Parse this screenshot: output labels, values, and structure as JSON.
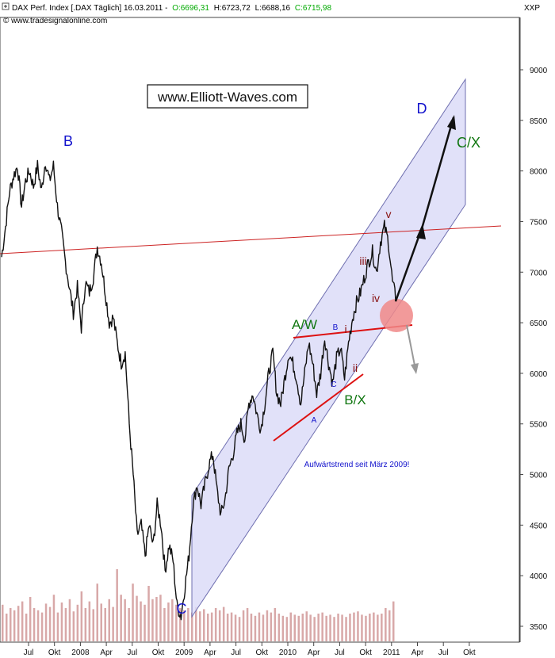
{
  "header": {
    "symbol_text": "DAX Perf. Index [.DAX  Täglich] 16.03.2011 -",
    "open_text": "O:6696,31",
    "high_text": "H:6723,72",
    "low_text": "L:6688,16",
    "close_text": "C:6715,98",
    "source_text": "© www.tradesignalonline.com",
    "ticker": "XXP",
    "colors": {
      "open": "#00aa00",
      "close": "#00aa00",
      "text": "#000000"
    }
  },
  "website_box": {
    "label": "www.Elliott-Waves.com"
  },
  "trend_note": "Aufwärtstrend seit März 2009!",
  "chart_data": {
    "type": "line",
    "title": "",
    "xlabel": "",
    "ylabel": "",
    "x_ticks": [
      "Jul",
      "Okt",
      "2008",
      "Apr",
      "Jul",
      "Okt",
      "2009",
      "Apr",
      "Jul",
      "Okt",
      "2010",
      "Apr",
      "Jul",
      "Okt",
      "2011",
      "Apr",
      "Jul",
      "Okt"
    ],
    "y_ticks": [
      3500,
      4000,
      4500,
      5000,
      5500,
      6000,
      6500,
      7000,
      7500,
      8000,
      8500,
      9000
    ],
    "ylim": [
      3400,
      9400
    ],
    "axis_side": "right",
    "grid": false,
    "series": [
      {
        "values": [
          7150,
          7450,
          7800,
          7950,
          8050,
          7650,
          7900,
          8000,
          7850,
          8050,
          7800,
          8100,
          7900,
          8050,
          7650,
          7400,
          7100,
          6850,
          6600,
          6850,
          6450,
          6900,
          6800,
          6950,
          7250,
          7100,
          6800,
          6500,
          6550,
          6300,
          6100,
          6200,
          5500,
          5000,
          4400,
          4500,
          4200,
          4500,
          4300,
          4700,
          4500,
          4050,
          4300,
          4150,
          3700,
          3600,
          3900,
          4200,
          4700,
          4900,
          4700,
          4900,
          5100,
          5200,
          4850,
          4600,
          4750,
          5050,
          5200,
          5400,
          5500,
          5350,
          5700,
          5800,
          5600,
          5450,
          5700,
          6000,
          6200,
          5800,
          5700,
          5950,
          6200,
          6100,
          5950,
          5700,
          6000,
          6300,
          6100,
          5800,
          6000,
          6350,
          6100,
          5900,
          6150,
          6250,
          5950,
          6300,
          6550,
          6700,
          6800,
          6950,
          7100,
          7200,
          7000,
          7300,
          7450,
          7300,
          6900,
          6716
        ]
      }
    ],
    "volume": [
      330,
      250,
      300,
      280,
      320,
      360,
      250,
      400,
      300,
      280,
      260,
      340,
      310,
      420,
      260,
      350,
      300,
      380,
      270,
      330,
      450,
      300,
      360,
      290,
      520,
      340,
      300,
      380,
      310,
      650,
      420,
      380,
      300,
      520,
      410,
      360,
      330,
      500,
      380,
      400,
      420,
      300,
      350,
      380,
      330,
      300,
      280,
      300,
      260,
      310,
      270,
      290,
      250,
      260,
      300,
      280,
      310,
      250,
      260,
      240,
      220,
      280,
      300,
      250,
      230,
      260,
      240,
      280,
      260,
      300,
      250,
      230,
      220,
      260,
      240,
      230,
      250,
      270,
      240,
      220,
      250,
      260,
      230,
      240,
      220,
      250,
      240,
      220,
      250,
      260,
      270,
      240,
      230,
      250,
      260,
      240,
      250,
      300,
      280,
      360
    ],
    "annotations": {
      "B_top": "B",
      "C_low": "C",
      "D": "D",
      "CX": "C/X",
      "AW": "A/W",
      "BX": "B/X",
      "small_A": "A",
      "small_B": "B",
      "small_C": "C",
      "sub_i": "i",
      "sub_ii": "ii",
      "sub_iii": "iii",
      "sub_iv": "iv",
      "sub_v": "v"
    },
    "annotation_colors": {
      "blue": "#1111cc",
      "green": "#117711",
      "maroon": "#881111",
      "trendline": "#cc2222",
      "channel_fill": "#dcdcf8",
      "channel_edge": "#6666aa",
      "volume": "#d8a8a8",
      "target_circle": "#f08888"
    }
  }
}
